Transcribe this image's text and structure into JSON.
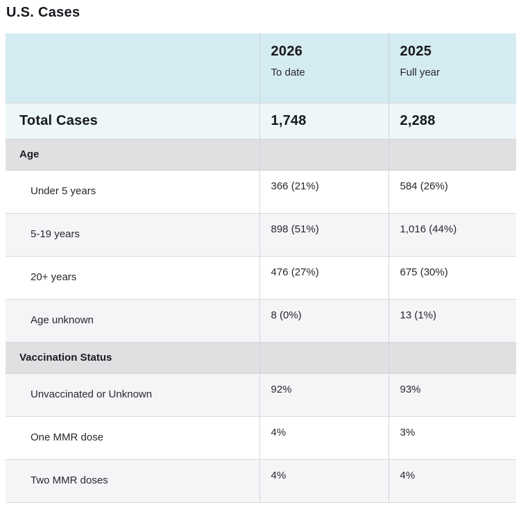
{
  "page": {
    "title": "U.S. Cases"
  },
  "table": {
    "columns": [
      {
        "year": "2026",
        "sub": "To date"
      },
      {
        "year": "2025",
        "sub": "Full year"
      }
    ],
    "total_row": {
      "label": "Total Cases",
      "values": [
        "1,748",
        "2,288"
      ]
    },
    "sections": [
      {
        "label": "Age",
        "rows": [
          {
            "label": "Under 5 years",
            "values": [
              "366 (21%)",
              "584 (26%)"
            ]
          },
          {
            "label": "5-19 years",
            "values": [
              "898 (51%)",
              "1,016 (44%)"
            ]
          },
          {
            "label": "20+ years",
            "values": [
              "476 (27%)",
              "675 (30%)"
            ]
          },
          {
            "label": "Age unknown",
            "values": [
              "8 (0%)",
              "13 (1%)"
            ]
          }
        ]
      },
      {
        "label": "Vaccination Status",
        "rows": [
          {
            "label": "Unvaccinated or Unknown",
            "values": [
              "92%",
              "93%"
            ]
          },
          {
            "label": "One MMR dose",
            "values": [
              "4%",
              "3%"
            ]
          },
          {
            "label": "Two MMR doses",
            "values": [
              "4%",
              "4%"
            ]
          }
        ]
      }
    ],
    "colors": {
      "header_bg": "#d4ebf1",
      "total_row_bg": "#edf6f8",
      "section_bg": "#e0e0e2",
      "stripe_bg": "#f5f5f7",
      "border": "#d6d7da",
      "text": "#17181d"
    }
  }
}
